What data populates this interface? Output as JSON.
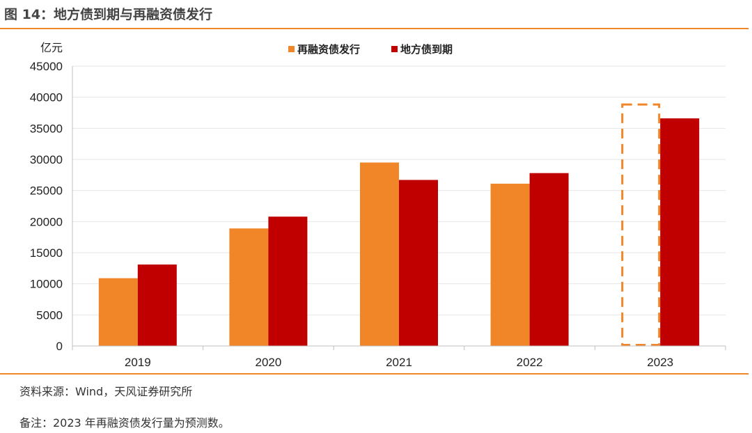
{
  "header": {
    "title": "图 14：地方债到期与再融资债发行"
  },
  "footer": {
    "source": "资料来源：Wind，天风证券研究所",
    "note": "备注：2023 年再融资债发行量为预测数。"
  },
  "colors": {
    "refinance": "#f08628",
    "maturity": "#c00000",
    "rule": "#f0862a",
    "grid": "#e6e6e6"
  },
  "chart_data": {
    "type": "bar",
    "ylabel": "亿元",
    "ylim": [
      0,
      45000
    ],
    "yticks": [
      0,
      5000,
      10000,
      15000,
      20000,
      25000,
      30000,
      35000,
      40000,
      45000
    ],
    "categories": [
      "2019",
      "2020",
      "2021",
      "2022",
      "2023"
    ],
    "series": [
      {
        "name": "再融资债发行",
        "values": [
          10900,
          18900,
          29500,
          26100,
          39000
        ],
        "forecast": [
          false,
          false,
          false,
          false,
          true
        ]
      },
      {
        "name": "地方债到期",
        "values": [
          13100,
          20800,
          26700,
          27800,
          36600
        ]
      }
    ],
    "legend": "top-center",
    "grid": true
  }
}
